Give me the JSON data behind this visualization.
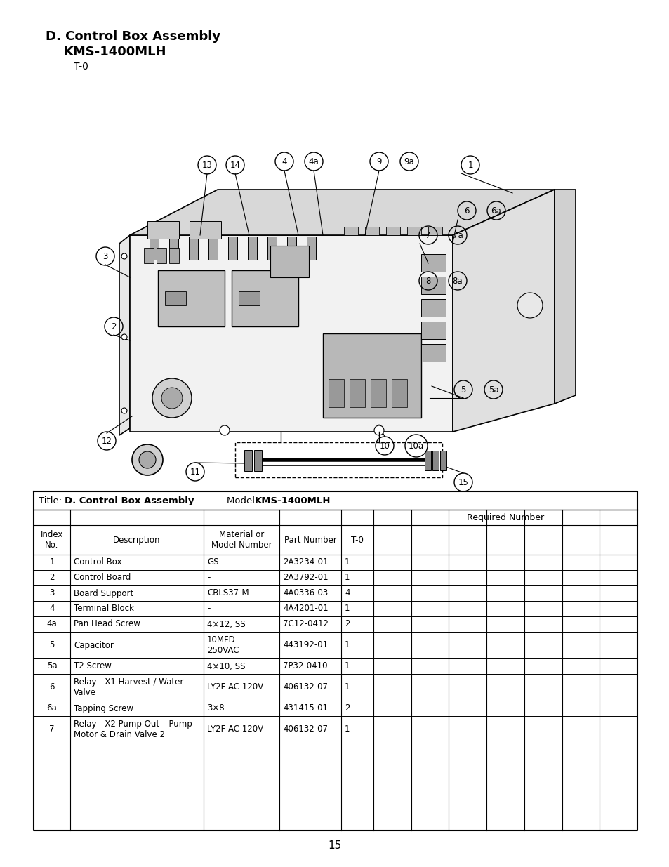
{
  "title_line1": "D. Control Box Assembly",
  "title_line2": "KMS-1400MLH",
  "title_line3": "T-0",
  "page_number": "15",
  "table_title_bold": "D. Control Box Assembly",
  "table_model_bold": "KMS-1400MLH",
  "required_number_label": "Required Number",
  "rows": [
    [
      "1",
      "Control Box",
      "GS",
      "2A3234-01",
      "1"
    ],
    [
      "2",
      "Control Board",
      "-",
      "2A3792-01",
      "1"
    ],
    [
      "3",
      "Board Support",
      "CBLS37-M",
      "4A0336-03",
      "4"
    ],
    [
      "4",
      "Terminal Block",
      "-",
      "4A4201-01",
      "1"
    ],
    [
      "4a",
      "Pan Head Screw",
      "4×12, SS",
      "7C12-0412",
      "2"
    ],
    [
      "5",
      "Capacitor",
      "10MFD\n250VAC",
      "443192-01",
      "1"
    ],
    [
      "5a",
      "T2 Screw",
      "4×10, SS",
      "7P32-0410",
      "1"
    ],
    [
      "6",
      "Relay - X1 Harvest / Water\nValve",
      "LY2F AC 120V",
      "406132-07",
      "1"
    ],
    [
      "6a",
      "Tapping Screw",
      "3×8",
      "431415-01",
      "2"
    ],
    [
      "7",
      "Relay - X2 Pump Out – Pump\nMotor & Drain Valve 2",
      "LY2F AC 120V",
      "406132-07",
      "1"
    ]
  ],
  "bg_color": "#ffffff",
  "text_color": "#000000"
}
